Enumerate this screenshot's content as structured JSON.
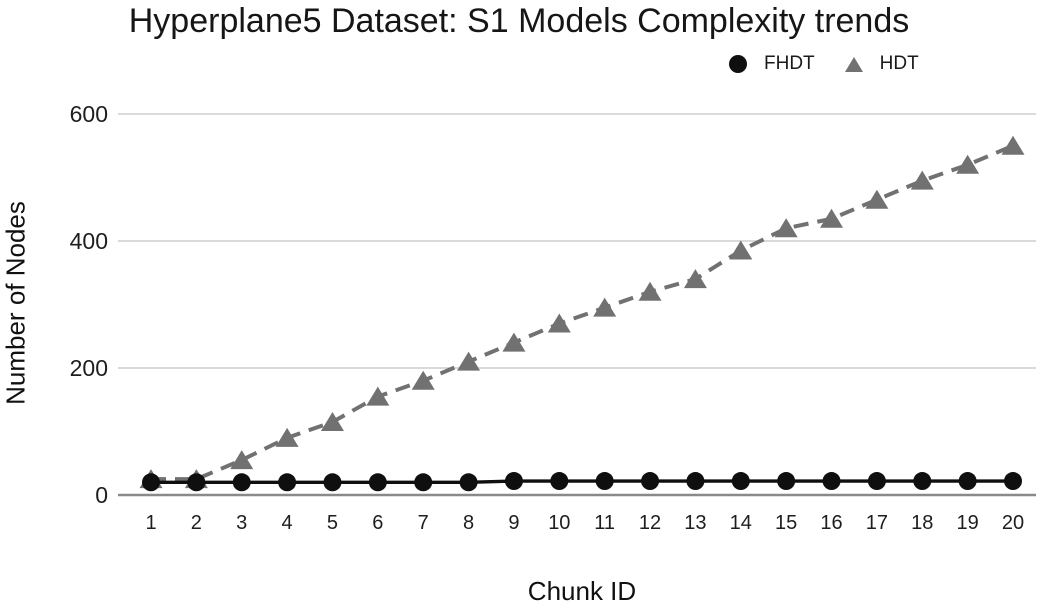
{
  "chart_data": {
    "type": "line",
    "title": "Hyperplane5 Dataset: S1 Models Complexity trends",
    "xlabel": "Chunk ID",
    "ylabel": "Number of Nodes",
    "x": [
      1,
      2,
      3,
      4,
      5,
      6,
      7,
      8,
      9,
      10,
      11,
      12,
      13,
      14,
      15,
      16,
      17,
      18,
      19,
      20
    ],
    "series": [
      {
        "name": "FHDT",
        "marker": "circle",
        "line_style": "solid",
        "color": "#0f0f0f",
        "values": [
          20,
          20,
          20,
          20,
          20,
          20,
          20,
          20,
          22,
          22,
          22,
          22,
          22,
          22,
          22,
          22,
          22,
          22,
          22,
          22
        ]
      },
      {
        "name": "HDT",
        "marker": "triangle",
        "line_style": "dashed",
        "color": "#717171",
        "values": [
          25,
          25,
          55,
          90,
          115,
          155,
          180,
          210,
          240,
          270,
          295,
          320,
          340,
          385,
          420,
          435,
          465,
          495,
          520,
          550
        ]
      }
    ],
    "ylim": [
      0,
      600
    ],
    "yticks": [
      0,
      200,
      400,
      600
    ],
    "grid": true,
    "legend_position": "top-right"
  },
  "colors": {
    "background": "#ffffff",
    "gridline": "#cdcdcd",
    "axis_line": "#8a8a8a",
    "tick_text": "#1e1e1e",
    "title_text": "#161616"
  }
}
